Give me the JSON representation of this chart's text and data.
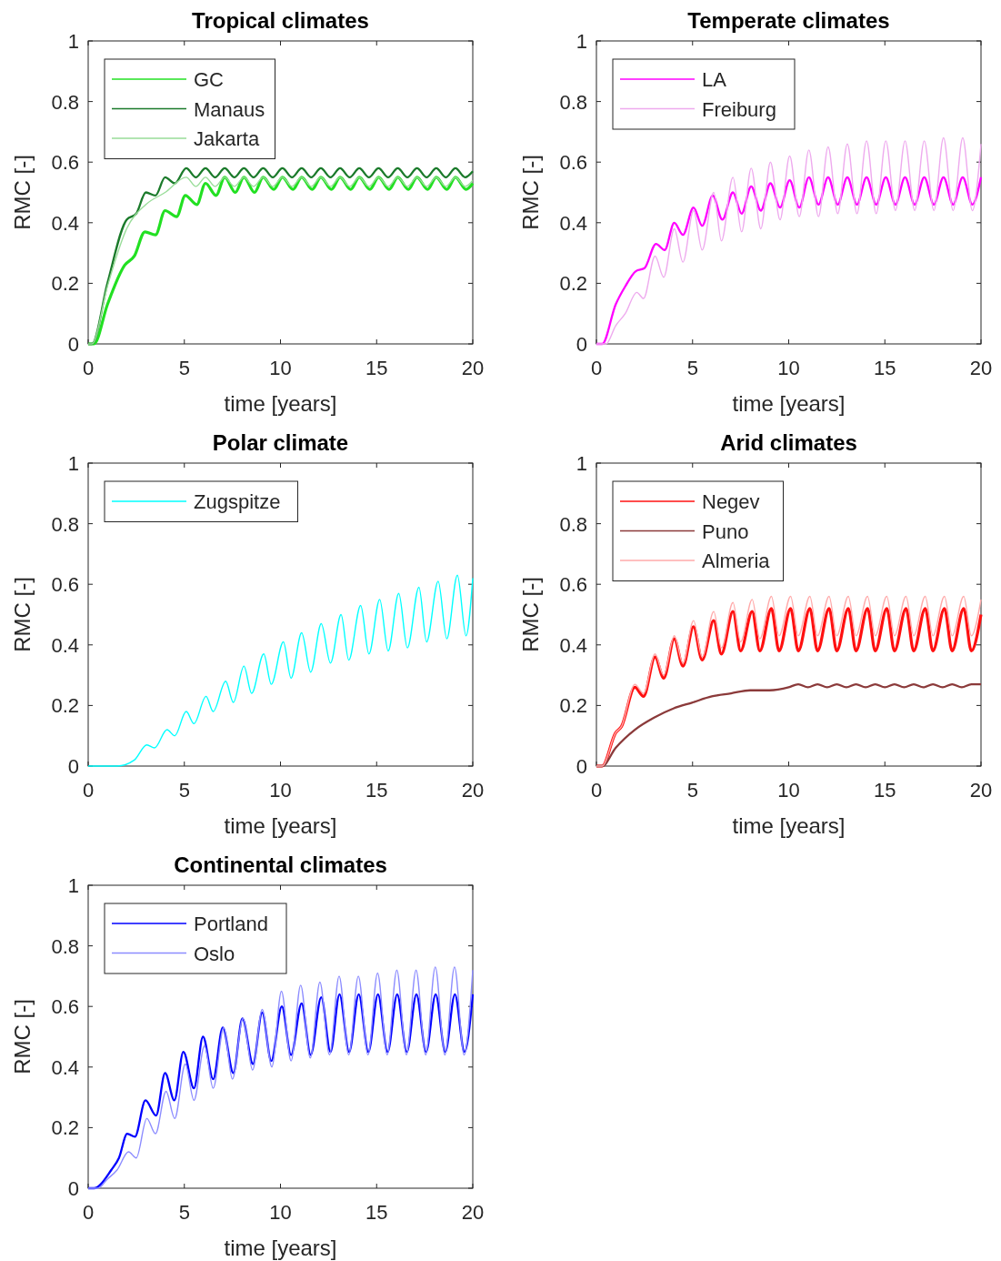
{
  "chart_data": [
    {
      "type": "line",
      "title": "Tropical climates",
      "xlabel": "time [years]",
      "ylabel": "RMC [-]",
      "xlim": [
        0,
        20
      ],
      "ylim": [
        0,
        1
      ],
      "xticks": [
        0,
        5,
        10,
        15,
        20
      ],
      "yticks": [
        0,
        0.2,
        0.4,
        0.6,
        0.8,
        1
      ],
      "legend": "top left",
      "series": [
        {
          "name": "GC",
          "color": "#22e022",
          "x": [
            0,
            0.3,
            1,
            1.9,
            2.4,
            2.95,
            3.5,
            4.0,
            4.6,
            5.05,
            5.65,
            6.1,
            6.65,
            7.1,
            7.65,
            8.1,
            8.65,
            9.1,
            9.65,
            10.1,
            10.65,
            11.1,
            11.65,
            12.1,
            12.65,
            13.1,
            13.65,
            14.1,
            14.65,
            15.1,
            15.65,
            16.1,
            16.65,
            17.1,
            17.65,
            18.1,
            18.65,
            19.1,
            19.65,
            20
          ],
          "values": [
            0,
            0,
            0.13,
            0.26,
            0.29,
            0.37,
            0.36,
            0.44,
            0.42,
            0.49,
            0.46,
            0.53,
            0.49,
            0.55,
            0.5,
            0.55,
            0.5,
            0.55,
            0.51,
            0.55,
            0.51,
            0.55,
            0.51,
            0.55,
            0.51,
            0.55,
            0.51,
            0.55,
            0.51,
            0.55,
            0.51,
            0.55,
            0.51,
            0.55,
            0.51,
            0.55,
            0.51,
            0.55,
            0.51,
            0.53
          ]
        },
        {
          "name": "Manaus",
          "color": "#1a7a2a",
          "x": [
            0,
            0.2,
            1,
            2,
            2.5,
            3,
            3.5,
            4,
            4.5,
            5.1,
            5.6,
            6.1,
            6.6,
            7.1,
            7.6,
            8.1,
            8.6,
            9.1,
            9.6,
            10.1,
            10.6,
            11.1,
            11.6,
            12.1,
            12.6,
            13.1,
            13.6,
            14.1,
            14.6,
            15.1,
            15.6,
            16.1,
            16.6,
            17.1,
            17.6,
            18.1,
            18.6,
            19.1,
            19.6,
            20
          ],
          "values": [
            0,
            0,
            0.2,
            0.41,
            0.43,
            0.5,
            0.49,
            0.55,
            0.53,
            0.58,
            0.55,
            0.58,
            0.55,
            0.58,
            0.55,
            0.58,
            0.55,
            0.58,
            0.55,
            0.58,
            0.55,
            0.58,
            0.55,
            0.58,
            0.55,
            0.58,
            0.55,
            0.58,
            0.55,
            0.58,
            0.55,
            0.58,
            0.55,
            0.58,
            0.55,
            0.58,
            0.55,
            0.58,
            0.55,
            0.57
          ]
        },
        {
          "name": "Jakarta",
          "color": "#99dd99",
          "x": [
            0,
            0.2,
            1,
            2,
            3,
            4,
            5.1,
            5.6,
            6.1,
            6.6,
            7.1,
            7.6,
            8.1,
            8.6,
            9.1,
            9.6,
            10.1,
            10.6,
            11.1,
            11.6,
            12.1,
            12.6,
            13.1,
            13.6,
            14.1,
            14.6,
            15.1,
            15.6,
            16.1,
            16.6,
            17.1,
            17.6,
            18.1,
            18.6,
            19.1,
            19.6,
            20
          ],
          "values": [
            0,
            0,
            0.19,
            0.38,
            0.46,
            0.5,
            0.55,
            0.52,
            0.55,
            0.52,
            0.55,
            0.52,
            0.55,
            0.52,
            0.55,
            0.52,
            0.55,
            0.52,
            0.55,
            0.52,
            0.55,
            0.52,
            0.55,
            0.52,
            0.55,
            0.52,
            0.55,
            0.52,
            0.55,
            0.52,
            0.55,
            0.52,
            0.55,
            0.52,
            0.55,
            0.52,
            0.54
          ]
        }
      ]
    },
    {
      "type": "line",
      "title": "Temperate climates",
      "xlabel": "time [years]",
      "ylabel": "RMC [-]",
      "xlim": [
        0,
        20
      ],
      "ylim": [
        0,
        1
      ],
      "xticks": [
        0,
        5,
        10,
        15,
        20
      ],
      "yticks": [
        0,
        0.2,
        0.4,
        0.6,
        0.8,
        1
      ],
      "legend": "top left",
      "series": [
        {
          "name": "LA",
          "color": "#ff00ff",
          "x": [
            0,
            0.3,
            1,
            1.5,
            2.05,
            2.5,
            3.1,
            3.55,
            4.05,
            4.5,
            5.05,
            5.5,
            6.05,
            6.55,
            7.1,
            7.55,
            8.05,
            8.55,
            9.05,
            9.55,
            10.05,
            10.55,
            11.05,
            11.55,
            12.05,
            12.55,
            13.05,
            13.55,
            14.05,
            14.55,
            15.05,
            15.55,
            16.05,
            16.55,
            17.05,
            17.55,
            18.05,
            18.55,
            19.05,
            19.55,
            20
          ],
          "values": [
            0,
            0,
            0.13,
            0.19,
            0.24,
            0.25,
            0.33,
            0.31,
            0.4,
            0.36,
            0.45,
            0.39,
            0.49,
            0.41,
            0.5,
            0.43,
            0.52,
            0.44,
            0.53,
            0.45,
            0.54,
            0.45,
            0.55,
            0.46,
            0.55,
            0.46,
            0.55,
            0.46,
            0.55,
            0.46,
            0.55,
            0.46,
            0.55,
            0.46,
            0.55,
            0.46,
            0.55,
            0.46,
            0.55,
            0.46,
            0.55
          ]
        },
        {
          "name": "Freiburg",
          "color": "#eeaaee",
          "x": [
            0,
            0.5,
            1,
            1.5,
            2.1,
            2.45,
            3.05,
            3.5,
            4.05,
            4.5,
            5.05,
            5.5,
            6.1,
            6.5,
            7.1,
            7.55,
            8.05,
            8.55,
            9.05,
            9.55,
            10.05,
            10.55,
            11.05,
            11.55,
            12.05,
            12.55,
            13.05,
            13.55,
            14.05,
            14.55,
            15.05,
            15.55,
            16.05,
            16.55,
            17.05,
            17.55,
            18.05,
            18.55,
            19.05,
            19.55,
            20
          ],
          "values": [
            0,
            0,
            0.06,
            0.1,
            0.17,
            0.15,
            0.29,
            0.22,
            0.38,
            0.27,
            0.44,
            0.31,
            0.5,
            0.34,
            0.55,
            0.37,
            0.58,
            0.38,
            0.6,
            0.41,
            0.62,
            0.42,
            0.64,
            0.42,
            0.65,
            0.43,
            0.66,
            0.43,
            0.67,
            0.43,
            0.67,
            0.44,
            0.67,
            0.44,
            0.67,
            0.44,
            0.68,
            0.44,
            0.68,
            0.44,
            0.66
          ]
        }
      ]
    },
    {
      "type": "line",
      "title": "Polar climate",
      "xlabel": "time [years]",
      "ylabel": "RMC [-]",
      "xlim": [
        0,
        20
      ],
      "ylim": [
        0,
        1
      ],
      "xticks": [
        0,
        5,
        10,
        15,
        20
      ],
      "yticks": [
        0,
        0.2,
        0.4,
        0.6,
        0.8,
        1
      ],
      "legend": "top left",
      "series": [
        {
          "name": "Zugspitze",
          "color": "#00ffff",
          "x": [
            0,
            1.5,
            2.4,
            3.05,
            3.45,
            4.1,
            4.5,
            5.1,
            5.5,
            6.13,
            6.5,
            7.15,
            7.55,
            8.1,
            8.5,
            9.13,
            9.52,
            10.15,
            10.55,
            11.1,
            11.57,
            12.12,
            12.6,
            13.15,
            13.55,
            14.17,
            14.6,
            15.16,
            15.6,
            16.15,
            16.6,
            17.2,
            17.6,
            18.2,
            18.65,
            19.2,
            19.65,
            20
          ],
          "values": [
            0,
            0,
            0.02,
            0.07,
            0.06,
            0.12,
            0.1,
            0.18,
            0.14,
            0.23,
            0.18,
            0.28,
            0.21,
            0.33,
            0.24,
            0.37,
            0.27,
            0.41,
            0.29,
            0.44,
            0.31,
            0.47,
            0.34,
            0.5,
            0.35,
            0.53,
            0.37,
            0.55,
            0.38,
            0.57,
            0.39,
            0.59,
            0.41,
            0.61,
            0.42,
            0.63,
            0.43,
            0.62
          ]
        }
      ]
    },
    {
      "type": "line",
      "title": "Arid climates",
      "xlabel": "time [years]",
      "ylabel": "RMC [-]",
      "xlim": [
        0,
        20
      ],
      "ylim": [
        0,
        1
      ],
      "xticks": [
        0,
        5,
        10,
        15,
        20
      ],
      "yticks": [
        0,
        0.2,
        0.4,
        0.6,
        0.8,
        1
      ],
      "legend": "top left",
      "series": [
        {
          "name": "Negev",
          "color": "#ff1010",
          "x": [
            0,
            0.3,
            1,
            1.3,
            2,
            2.45,
            3.05,
            3.5,
            4.05,
            4.5,
            5.05,
            5.5,
            6.1,
            6.5,
            7.1,
            7.5,
            8.1,
            8.5,
            9.1,
            9.5,
            10.1,
            10.5,
            11.1,
            11.5,
            12.1,
            12.5,
            13.1,
            13.5,
            14.1,
            14.5,
            15.1,
            15.5,
            16.1,
            16.5,
            17.1,
            17.5,
            18.1,
            18.5,
            19.1,
            19.5,
            20
          ],
          "values": [
            0,
            0,
            0.11,
            0.13,
            0.26,
            0.23,
            0.36,
            0.29,
            0.42,
            0.33,
            0.46,
            0.35,
            0.48,
            0.37,
            0.51,
            0.38,
            0.51,
            0.38,
            0.52,
            0.38,
            0.52,
            0.38,
            0.52,
            0.38,
            0.52,
            0.38,
            0.52,
            0.38,
            0.52,
            0.38,
            0.52,
            0.38,
            0.52,
            0.38,
            0.52,
            0.38,
            0.52,
            0.38,
            0.52,
            0.38,
            0.5
          ]
        },
        {
          "name": "Puno",
          "color": "#8b3a3a",
          "x": [
            0,
            0.3,
            1,
            2,
            3,
            4,
            5,
            6,
            7,
            8,
            9,
            10,
            10.5,
            11,
            11.5,
            12,
            12.5,
            13,
            13.5,
            14,
            14.5,
            15,
            15.5,
            16,
            16.5,
            17,
            17.5,
            18,
            18.5,
            19,
            19.5,
            20
          ],
          "values": [
            0,
            0,
            0.06,
            0.12,
            0.16,
            0.19,
            0.21,
            0.23,
            0.24,
            0.25,
            0.25,
            0.26,
            0.27,
            0.26,
            0.27,
            0.26,
            0.27,
            0.26,
            0.27,
            0.26,
            0.27,
            0.26,
            0.27,
            0.26,
            0.27,
            0.26,
            0.27,
            0.26,
            0.27,
            0.26,
            0.27,
            0.27
          ]
        },
        {
          "name": "Almeria",
          "color": "#ffaaaa",
          "x": [
            0,
            0.3,
            1,
            1.3,
            2,
            2.45,
            3.05,
            3.5,
            4.05,
            4.5,
            5.05,
            5.5,
            6.1,
            6.5,
            7.1,
            7.5,
            8.1,
            8.5,
            9.1,
            9.5,
            10.1,
            10.5,
            11.1,
            11.5,
            12.1,
            12.5,
            13.1,
            13.5,
            14.1,
            14.5,
            15.1,
            15.5,
            16.1,
            16.5,
            17.1,
            17.5,
            18.1,
            18.5,
            19.1,
            19.5,
            20
          ],
          "values": [
            0,
            0,
            0.11,
            0.13,
            0.27,
            0.24,
            0.37,
            0.3,
            0.43,
            0.34,
            0.48,
            0.36,
            0.51,
            0.39,
            0.54,
            0.41,
            0.55,
            0.42,
            0.56,
            0.43,
            0.56,
            0.43,
            0.56,
            0.43,
            0.56,
            0.43,
            0.56,
            0.43,
            0.56,
            0.43,
            0.56,
            0.43,
            0.56,
            0.43,
            0.56,
            0.43,
            0.56,
            0.43,
            0.56,
            0.43,
            0.55
          ]
        }
      ]
    },
    {
      "type": "line",
      "title": "Continental climates",
      "xlabel": "time [years]",
      "ylabel": "RMC [-]",
      "xlim": [
        0,
        20
      ],
      "ylim": [
        0,
        1
      ],
      "xticks": [
        0,
        5,
        10,
        15,
        20
      ],
      "yticks": [
        0,
        0.2,
        0.4,
        0.6,
        0.8,
        1
      ],
      "legend": "top left",
      "series": [
        {
          "name": "Portland",
          "color": "#0000ff",
          "x": [
            0,
            0.3,
            1.2,
            1.6,
            2.03,
            2.43,
            2.98,
            3.53,
            4,
            4.48,
            4.95,
            5.5,
            5.97,
            6.5,
            7,
            7.55,
            8.02,
            8.57,
            9.05,
            9.52,
            10.07,
            10.55,
            11.1,
            11.57,
            12.12,
            12.6,
            13.07,
            13.57,
            14.07,
            14.57,
            15.07,
            15.57,
            16.07,
            16.57,
            17.07,
            17.57,
            18.07,
            18.57,
            19.07,
            19.57,
            20
          ],
          "values": [
            0,
            0,
            0.06,
            0.1,
            0.18,
            0.17,
            0.29,
            0.24,
            0.38,
            0.29,
            0.45,
            0.33,
            0.5,
            0.36,
            0.53,
            0.38,
            0.56,
            0.41,
            0.58,
            0.42,
            0.6,
            0.44,
            0.61,
            0.44,
            0.63,
            0.45,
            0.64,
            0.45,
            0.64,
            0.45,
            0.64,
            0.45,
            0.64,
            0.45,
            0.64,
            0.45,
            0.64,
            0.45,
            0.64,
            0.45,
            0.64
          ]
        },
        {
          "name": "Oslo",
          "color": "#8c8cff",
          "x": [
            0,
            0.5,
            1,
            1.5,
            2.1,
            2.5,
            3.05,
            3.5,
            4.05,
            4.5,
            5.05,
            5.5,
            6.05,
            6.5,
            7.05,
            7.5,
            8.05,
            8.55,
            9.05,
            9.55,
            10.05,
            10.55,
            11.05,
            11.55,
            12.05,
            12.55,
            13.05,
            13.55,
            14.05,
            14.55,
            15.05,
            15.55,
            16.05,
            16.55,
            17.05,
            17.55,
            18.05,
            18.55,
            19.05,
            19.55,
            20
          ],
          "values": [
            0,
            0,
            0.03,
            0.06,
            0.12,
            0.1,
            0.23,
            0.18,
            0.32,
            0.23,
            0.41,
            0.29,
            0.47,
            0.33,
            0.53,
            0.36,
            0.56,
            0.39,
            0.59,
            0.4,
            0.65,
            0.42,
            0.67,
            0.43,
            0.68,
            0.44,
            0.7,
            0.44,
            0.7,
            0.44,
            0.71,
            0.44,
            0.72,
            0.44,
            0.72,
            0.44,
            0.73,
            0.44,
            0.73,
            0.44,
            0.72
          ]
        }
      ]
    }
  ]
}
